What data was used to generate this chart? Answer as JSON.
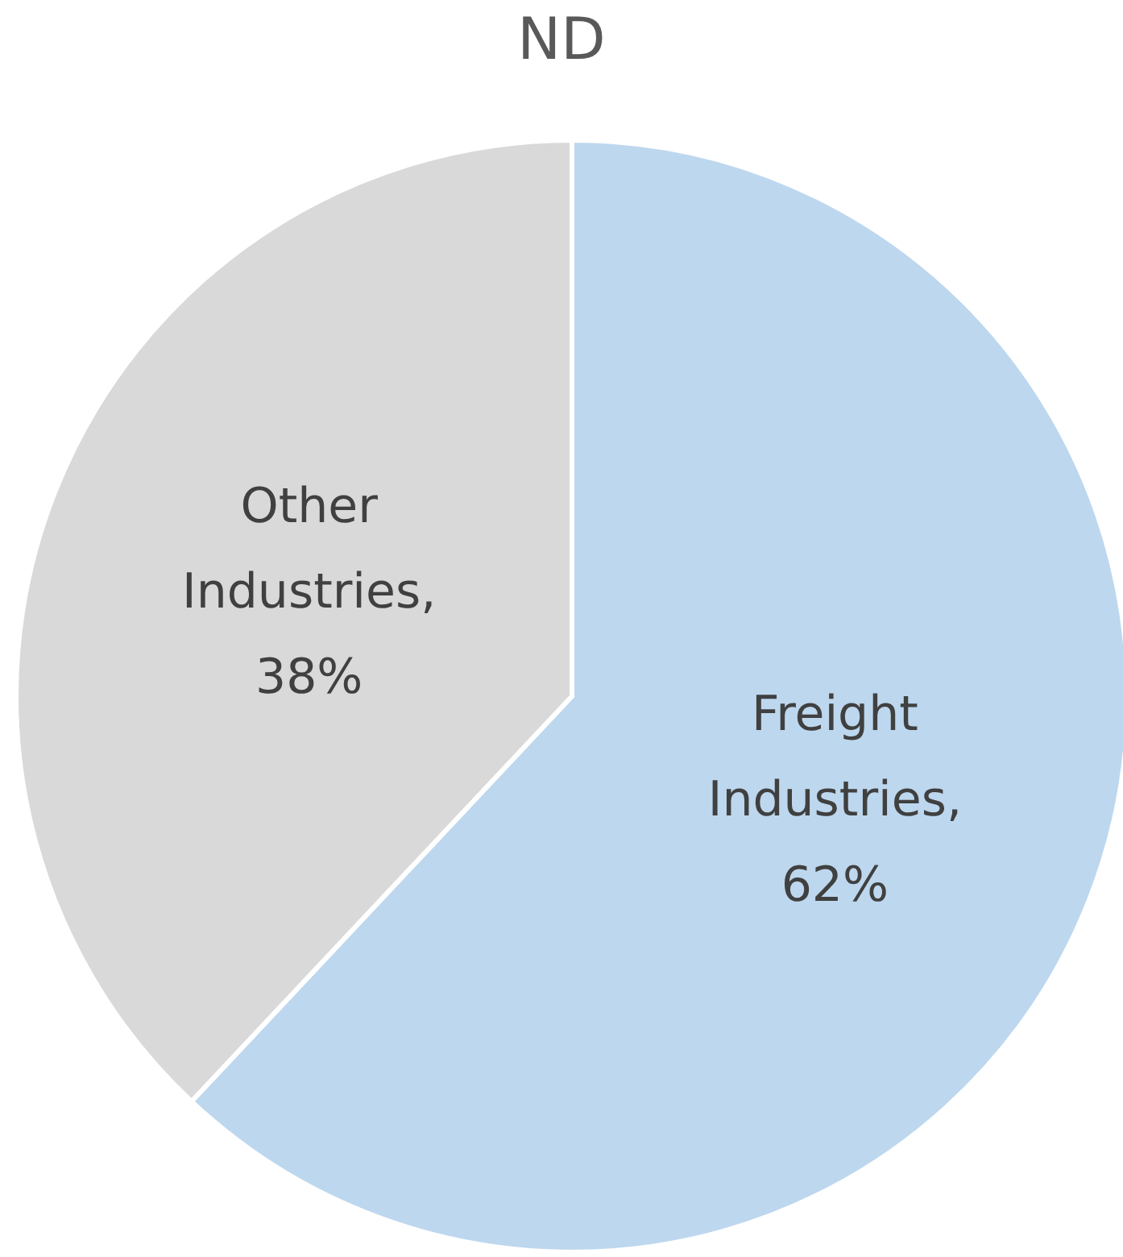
{
  "chart_data": {
    "type": "pie",
    "title": "ND",
    "categories": [
      "Freight Industries",
      "Other Industries"
    ],
    "values": [
      62,
      38
    ],
    "value_labels": [
      ", 62%",
      ", 38%"
    ],
    "colors": [
      "#bdd7ee",
      "#d9d9d9"
    ]
  }
}
